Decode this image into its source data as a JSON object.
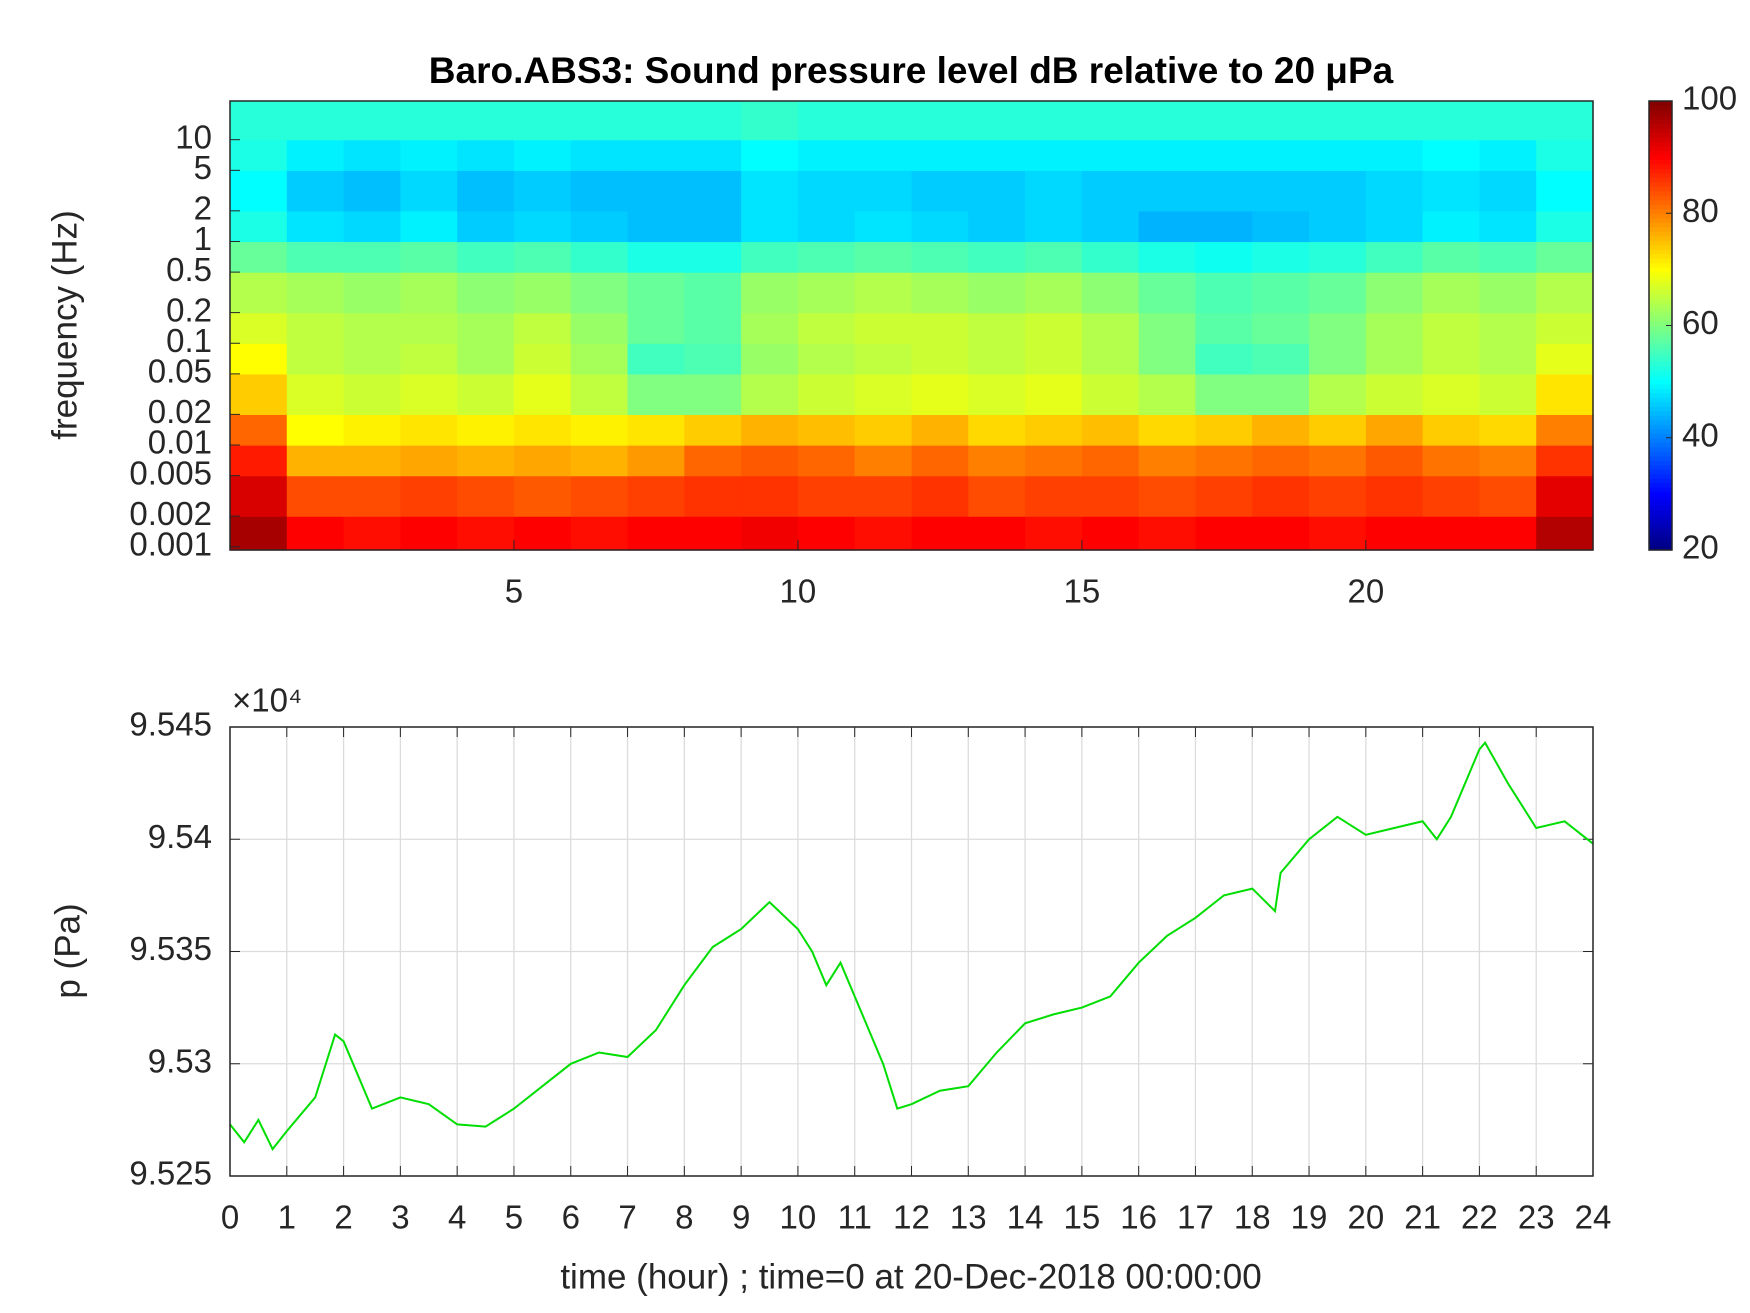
{
  "chart_data": [
    {
      "type": "heatmap",
      "title": "Baro.ABS3: Sound pressure level dB relative to 20 μPa",
      "ylabel": "frequency (Hz)",
      "yscale": "log",
      "xbins": [
        0,
        1,
        2,
        3,
        4,
        5,
        6,
        7,
        8,
        9,
        10,
        11,
        12,
        13,
        14,
        15,
        16,
        17,
        18,
        19,
        20,
        21,
        22,
        23,
        24
      ],
      "ybins": [
        0.00093,
        0.002,
        0.005,
        0.01,
        0.02,
        0.05,
        0.1,
        0.2,
        0.5,
        1,
        2,
        5,
        10,
        24
      ],
      "xlim": [
        0,
        24
      ],
      "ylim": [
        0.00093,
        24
      ],
      "xticks": [
        5,
        10,
        15,
        20
      ],
      "yticks": [
        0.001,
        0.002,
        0.005,
        0.01,
        0.02,
        0.05,
        0.1,
        0.2,
        0.5,
        1,
        2,
        5,
        10
      ],
      "colormap": "jet",
      "clim": [
        20,
        100
      ],
      "cticks": [
        20,
        40,
        60,
        80,
        100
      ],
      "values": [
        [
          97,
          90,
          89,
          90,
          89,
          90,
          89,
          90,
          90,
          91,
          90,
          89,
          90,
          90,
          89,
          90,
          89,
          90,
          90,
          89,
          90,
          90,
          90,
          96
        ],
        [
          93,
          84,
          84,
          85,
          84,
          83,
          84,
          85,
          86,
          86,
          85,
          85,
          86,
          84,
          85,
          85,
          84,
          85,
          86,
          85,
          86,
          85,
          84,
          92
        ],
        [
          88,
          76,
          76,
          77,
          76,
          77,
          76,
          78,
          82,
          83,
          82,
          80,
          82,
          80,
          81,
          82,
          80,
          81,
          82,
          81,
          83,
          81,
          80,
          86
        ],
        [
          82,
          70,
          71,
          72,
          71,
          72,
          71,
          72,
          74,
          76,
          75,
          74,
          76,
          73,
          74,
          75,
          73,
          74,
          76,
          74,
          77,
          74,
          73,
          80
        ],
        [
          74,
          67,
          66,
          67,
          66,
          68,
          65,
          60,
          60,
          64,
          66,
          67,
          68,
          67,
          68,
          66,
          64,
          60,
          60,
          64,
          66,
          67,
          66,
          72
        ],
        [
          70,
          65,
          64,
          65,
          63,
          66,
          63,
          55,
          56,
          62,
          64,
          65,
          66,
          65,
          66,
          64,
          60,
          55,
          56,
          60,
          63,
          65,
          64,
          68
        ],
        [
          67,
          65,
          64,
          64,
          63,
          65,
          62,
          58,
          57,
          63,
          65,
          66,
          66,
          65,
          66,
          64,
          60,
          57,
          58,
          60,
          63,
          65,
          64,
          66
        ],
        [
          64,
          63,
          62,
          63,
          61,
          62,
          60,
          58,
          57,
          62,
          63,
          64,
          63,
          62,
          63,
          61,
          58,
          56,
          57,
          58,
          61,
          63,
          62,
          64
        ],
        [
          58,
          56,
          56,
          57,
          55,
          56,
          54,
          52,
          52,
          55,
          56,
          57,
          56,
          55,
          56,
          54,
          52,
          51,
          52,
          53,
          55,
          57,
          56,
          58
        ],
        [
          52,
          48,
          47,
          49,
          46,
          47,
          46,
          45,
          45,
          48,
          47,
          48,
          47,
          46,
          47,
          46,
          44,
          44,
          45,
          46,
          47,
          49,
          48,
          52
        ],
        [
          50,
          46,
          45,
          47,
          45,
          46,
          45,
          45,
          45,
          48,
          47,
          47,
          46,
          46,
          47,
          46,
          46,
          46,
          46,
          46,
          47,
          48,
          47,
          50
        ],
        [
          52,
          49,
          48,
          49,
          48,
          49,
          48,
          48,
          48,
          50,
          49,
          49,
          49,
          49,
          49,
          49,
          49,
          49,
          49,
          49,
          49,
          50,
          49,
          52
        ],
        [
          53,
          53,
          53,
          53,
          53,
          53,
          53,
          53,
          53,
          54,
          53,
          53,
          53,
          53,
          53,
          53,
          53,
          53,
          53,
          53,
          53,
          53,
          53,
          53
        ]
      ]
    },
    {
      "type": "line",
      "xlabel": "time (hour) ; time=0 at 20-Dec-2018 00:00:00",
      "ylabel": "p (Pa)",
      "y_multiplier": "×10⁴",
      "color": "#00dd00",
      "grid": true,
      "xlim": [
        0,
        24
      ],
      "ylim": [
        9.525,
        9.545
      ],
      "xticks": [
        0,
        1,
        2,
        3,
        4,
        5,
        6,
        7,
        8,
        9,
        10,
        11,
        12,
        13,
        14,
        15,
        16,
        17,
        18,
        19,
        20,
        21,
        22,
        23,
        24
      ],
      "yticks": [
        9.525,
        9.53,
        9.535,
        9.54,
        9.545
      ],
      "x": [
        0,
        0.25,
        0.5,
        0.75,
        1,
        1.5,
        1.85,
        2,
        2.5,
        3,
        3.5,
        4,
        4.5,
        5,
        5.5,
        6,
        6.5,
        7,
        7.5,
        8,
        8.5,
        9,
        9.5,
        10,
        10.25,
        10.5,
        10.75,
        11,
        11.5,
        11.75,
        12,
        12.5,
        13,
        13.5,
        14,
        14.5,
        15,
        15.5,
        16,
        16.5,
        17,
        17.5,
        18,
        18.4,
        18.5,
        19,
        19.5,
        20,
        20.5,
        21,
        21.25,
        21.5,
        22,
        22.1,
        22.5,
        23,
        23.5,
        24
      ],
      "values": [
        9.5273,
        9.5265,
        9.5275,
        9.5262,
        9.527,
        9.5285,
        9.5313,
        9.531,
        9.528,
        9.5285,
        9.5282,
        9.5273,
        9.5272,
        9.528,
        9.529,
        9.53,
        9.5305,
        9.5303,
        9.5315,
        9.5335,
        9.5352,
        9.536,
        9.5372,
        9.536,
        9.535,
        9.5335,
        9.5345,
        9.533,
        9.53,
        9.528,
        9.5282,
        9.5288,
        9.529,
        9.5305,
        9.5318,
        9.5322,
        9.5325,
        9.533,
        9.5345,
        9.5357,
        9.5365,
        9.5375,
        9.5378,
        9.5368,
        9.5385,
        9.54,
        9.541,
        9.5402,
        9.5405,
        9.5408,
        9.54,
        9.541,
        9.544,
        9.5443,
        9.5425,
        9.5405,
        9.5408,
        9.5398
      ]
    }
  ]
}
